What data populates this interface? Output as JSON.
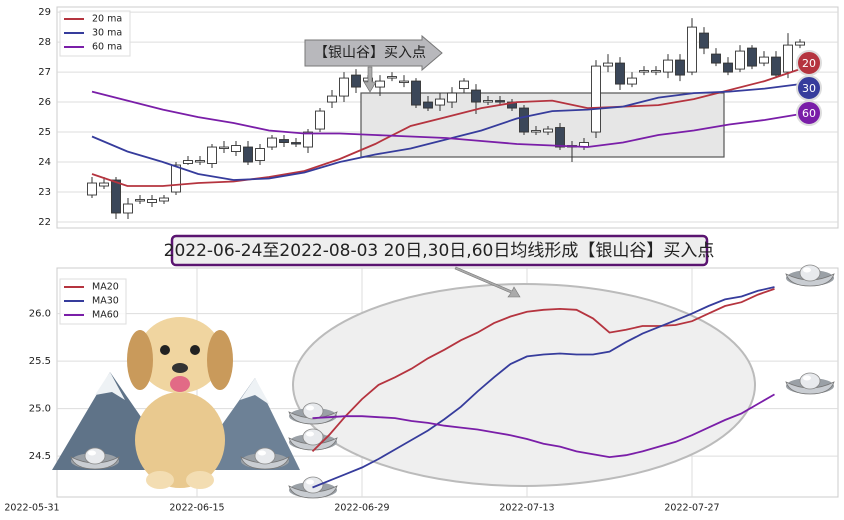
{
  "chart_data": [
    {
      "type": "candlestick",
      "open": [
        22.9,
        23.2,
        23.4,
        22.3,
        22.7,
        22.65,
        22.7,
        23.0,
        23.95,
        24.0,
        23.95,
        24.45,
        24.35,
        24.5,
        24.05,
        24.5,
        24.75,
        24.65,
        24.5,
        25.1,
        26.0,
        26.2,
        26.9,
        26.7,
        26.5,
        26.8,
        26.65,
        26.7,
        26.0,
        25.9,
        26.0,
        26.45,
        26.4,
        26.0,
        26.05,
        26.0,
        25.8,
        25.0,
        25.0,
        25.15,
        24.55,
        24.5,
        25.0,
        27.2,
        27.3,
        26.6,
        27.0,
        27.0,
        27.0,
        27.4,
        27.0,
        28.3,
        27.6,
        27.3,
        27.1,
        27.8,
        27.3,
        27.5,
        27.0,
        27.9
      ],
      "close": [
        23.3,
        23.3,
        22.3,
        22.6,
        22.75,
        22.75,
        22.8,
        23.9,
        24.05,
        24.05,
        24.5,
        24.5,
        24.55,
        24.0,
        24.45,
        24.8,
        24.65,
        24.6,
        25.0,
        25.7,
        26.2,
        26.8,
        26.5,
        26.8,
        26.7,
        26.85,
        26.7,
        25.9,
        25.8,
        26.1,
        26.3,
        26.7,
        26.0,
        26.05,
        26.0,
        25.8,
        25.0,
        25.05,
        25.1,
        24.5,
        24.5,
        24.65,
        27.2,
        27.3,
        26.6,
        26.8,
        27.05,
        27.05,
        27.4,
        26.9,
        28.5,
        27.8,
        27.3,
        27.0,
        27.7,
        27.2,
        27.5,
        26.9,
        27.9,
        28.0
      ],
      "high": [
        23.5,
        23.5,
        23.5,
        22.8,
        22.9,
        22.9,
        22.9,
        24.0,
        24.2,
        24.2,
        24.6,
        24.7,
        24.7,
        24.7,
        24.6,
        24.9,
        24.9,
        24.8,
        25.1,
        25.8,
        26.4,
        27.0,
        27.1,
        26.9,
        26.9,
        27.0,
        26.9,
        26.8,
        26.2,
        26.3,
        26.5,
        26.8,
        26.6,
        26.2,
        26.2,
        26.1,
        25.9,
        25.2,
        25.2,
        25.3,
        24.7,
        24.8,
        27.4,
        27.6,
        27.5,
        27.0,
        27.2,
        27.2,
        27.6,
        27.6,
        28.8,
        28.5,
        27.8,
        27.5,
        27.9,
        27.9,
        27.7,
        27.7,
        28.3,
        28.1
      ],
      "low": [
        22.8,
        23.1,
        22.1,
        22.1,
        22.6,
        22.5,
        22.6,
        22.9,
        23.9,
        23.9,
        23.8,
        24.3,
        24.2,
        23.9,
        23.9,
        24.4,
        24.5,
        24.5,
        24.3,
        25.0,
        25.8,
        26.0,
        26.3,
        26.5,
        26.2,
        26.7,
        26.5,
        25.8,
        25.7,
        25.7,
        25.8,
        26.3,
        25.6,
        25.9,
        25.9,
        25.7,
        24.9,
        24.9,
        24.9,
        24.4,
        24.0,
        24.4,
        24.8,
        27.0,
        26.4,
        26.5,
        26.9,
        26.9,
        26.8,
        26.7,
        26.9,
        27.6,
        27.2,
        26.9,
        27.0,
        27.1,
        27.2,
        26.8,
        26.8,
        27.8
      ],
      "series": [
        {
          "name": "20 ma",
          "color": "#b5343f",
          "values": [
            23.6,
            23.2,
            23.2,
            23.3,
            23.35,
            23.5,
            23.7,
            24.1,
            24.6,
            25.2,
            25.5,
            25.8,
            26.0,
            26.05,
            25.8,
            25.85,
            25.9,
            26.1,
            26.4,
            26.7,
            27.1
          ]
        },
        {
          "name": "30 ma",
          "color": "#363c9c",
          "values": [
            24.85,
            24.35,
            24.0,
            23.6,
            23.4,
            23.45,
            23.65,
            24.0,
            24.25,
            24.45,
            24.75,
            25.05,
            25.45,
            25.7,
            25.75,
            25.85,
            26.15,
            26.3,
            26.35,
            26.45,
            26.6
          ]
        },
        {
          "name": "60 ma",
          "color": "#7a1ea8",
          "values": [
            26.35,
            26.05,
            25.75,
            25.5,
            25.3,
            25.05,
            24.95,
            24.95,
            24.9,
            24.85,
            24.8,
            24.7,
            24.6,
            24.55,
            24.5,
            24.65,
            24.9,
            25.05,
            25.25,
            25.4,
            25.6
          ]
        }
      ],
      "ylim": [
        21.8,
        29.17
      ],
      "yticks": [
        22,
        23,
        24,
        25,
        26,
        27,
        28,
        29
      ],
      "grid": true,
      "annotation": "【银山谷】买入点",
      "badges": [
        20,
        30,
        60
      ]
    },
    {
      "type": "line",
      "title": "2022-06-24至2022-08-03 20日,30日,60日均线形成【银山谷】买入点",
      "categories": [
        "2022-05-31",
        null,
        null,
        null,
        null,
        null,
        null,
        null,
        null,
        null,
        "2022-06-15",
        null,
        null,
        null,
        null,
        null,
        null,
        null,
        null,
        null,
        "2022-06-29",
        null,
        null,
        null,
        null,
        null,
        null,
        null,
        null,
        null,
        "2022-07-13",
        null,
        null,
        null,
        null,
        null,
        null,
        null,
        null,
        null,
        "2022-07-27",
        null,
        null,
        null,
        null,
        null,
        null,
        null
      ],
      "series": [
        {
          "name": "MA20",
          "color": "#b5343f",
          "values": [
            null,
            null,
            null,
            null,
            null,
            null,
            null,
            null,
            null,
            null,
            null,
            null,
            null,
            null,
            null,
            null,
            null,
            24.55,
            24.72,
            24.92,
            25.1,
            25.25,
            25.33,
            25.42,
            25.53,
            25.62,
            25.72,
            25.8,
            25.9,
            25.97,
            26.02,
            26.04,
            26.05,
            26.04,
            25.95,
            25.8,
            25.83,
            25.87,
            25.87,
            25.88,
            25.92,
            26.0,
            26.08,
            26.12,
            26.2,
            26.26,
            null,
            null
          ]
        },
        {
          "name": "MA30",
          "color": "#363c9c",
          "values": [
            null,
            null,
            null,
            null,
            null,
            null,
            null,
            null,
            null,
            null,
            null,
            null,
            null,
            null,
            null,
            null,
            null,
            24.17,
            24.24,
            24.31,
            24.38,
            24.47,
            24.57,
            24.67,
            24.77,
            24.89,
            25.02,
            25.18,
            25.33,
            25.47,
            25.55,
            25.57,
            25.58,
            25.57,
            25.57,
            25.6,
            25.7,
            25.79,
            25.86,
            25.93,
            26.0,
            26.08,
            26.15,
            26.18,
            26.24,
            26.28,
            null,
            null
          ]
        },
        {
          "name": "MA60",
          "color": "#7a1ea8",
          "values": [
            null,
            null,
            null,
            null,
            null,
            null,
            null,
            null,
            null,
            null,
            null,
            null,
            null,
            null,
            null,
            null,
            null,
            24.9,
            24.91,
            24.92,
            24.92,
            24.91,
            24.9,
            24.87,
            24.85,
            24.82,
            24.8,
            24.78,
            24.75,
            24.72,
            24.68,
            24.63,
            24.6,
            24.55,
            24.52,
            24.49,
            24.51,
            24.55,
            24.6,
            24.65,
            24.72,
            24.8,
            24.88,
            24.95,
            25.05,
            25.15,
            null,
            null
          ]
        }
      ],
      "ylim": [
        24.07,
        26.48
      ],
      "yticks": [
        24.5,
        {
          "value": 25,
          "label": "25.0"
        },
        25.5,
        {
          "value": 26,
          "label": "26.0"
        }
      ],
      "grid": true
    }
  ]
}
